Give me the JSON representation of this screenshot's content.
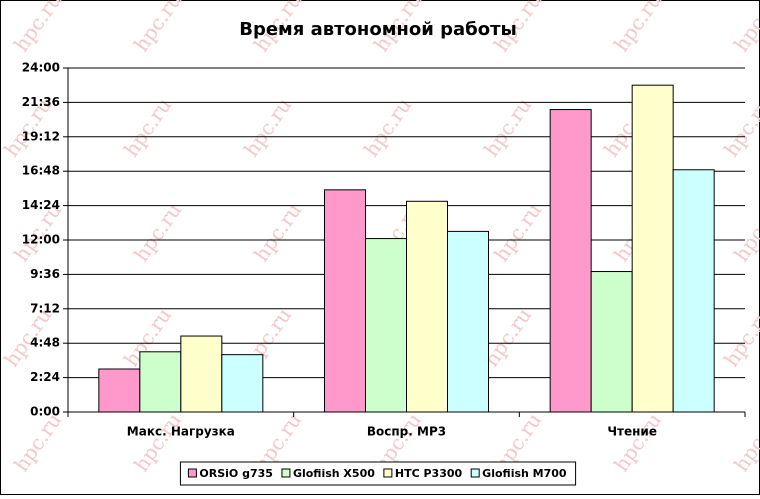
{
  "chart_data": {
    "type": "bar",
    "title": "Время автономной работы",
    "watermark": "hpc.ru",
    "categories": [
      "Макс. Нагрузка",
      "Воспр. MP3",
      "Чтение"
    ],
    "series": [
      {
        "name": "ORSiO g735",
        "color": "#ff99cc",
        "values": [
          3.0,
          15.5,
          21.1
        ]
      },
      {
        "name": "Glofiish X500",
        "color": "#ccffcc",
        "values": [
          4.2,
          12.1,
          9.8
        ]
      },
      {
        "name": "HTC P3300",
        "color": "#ffffcc",
        "values": [
          5.3,
          14.7,
          22.8
        ]
      },
      {
        "name": "Glofiish M700",
        "color": "#ccffff",
        "values": [
          4.0,
          12.6,
          16.9
        ]
      }
    ],
    "ylim": [
      0,
      24
    ],
    "yticks": [
      {
        "value": 0,
        "label": "0:00"
      },
      {
        "value": 2.4,
        "label": "2:24"
      },
      {
        "value": 4.8,
        "label": "4:48"
      },
      {
        "value": 7.2,
        "label": "7:12"
      },
      {
        "value": 9.6,
        "label": "9:36"
      },
      {
        "value": 12,
        "label": "12:00"
      },
      {
        "value": 14.4,
        "label": "14:24"
      },
      {
        "value": 16.8,
        "label": "16:48"
      },
      {
        "value": 19.2,
        "label": "19:12"
      },
      {
        "value": 21.6,
        "label": "21:36"
      },
      {
        "value": 24,
        "label": "24:00"
      }
    ],
    "grid": true,
    "legend": "bottom"
  }
}
